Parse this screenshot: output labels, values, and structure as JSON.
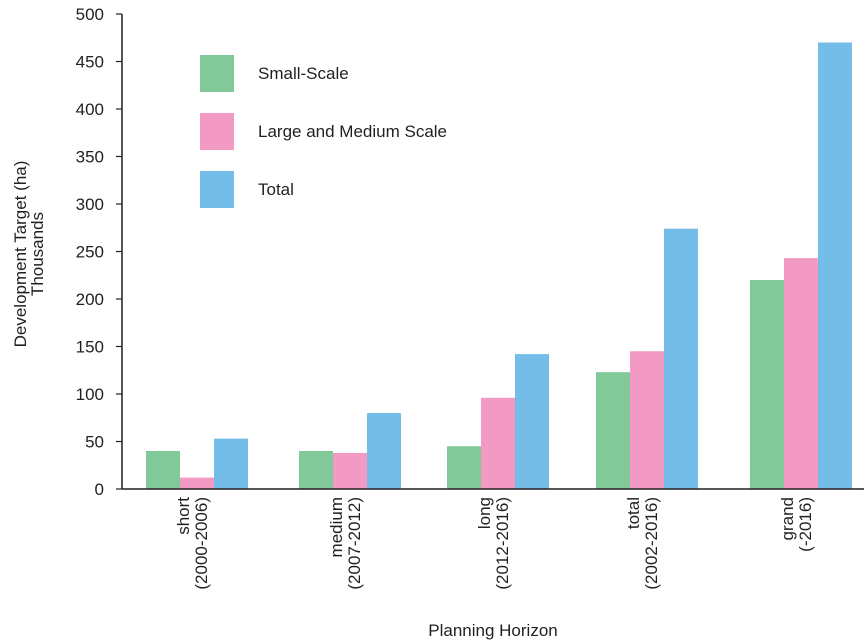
{
  "chart_data": {
    "type": "bar",
    "categories": [
      [
        "short",
        "(2000-2006)"
      ],
      [
        "medium",
        "(2007-2012)"
      ],
      [
        "long",
        "(2012-2016)"
      ],
      [
        "total",
        "(2002-2016)"
      ],
      [
        "grand",
        "(-2016)"
      ]
    ],
    "series": [
      {
        "name": "Small-Scale",
        "values": [
          40,
          40,
          45,
          123,
          220
        ],
        "color": "#82c99a"
      },
      {
        "name": "Large and Medium Scale",
        "values": [
          12,
          38,
          96,
          145,
          243
        ],
        "color": "#f29ac4"
      },
      {
        "name": "Total",
        "values": [
          53,
          80,
          142,
          274,
          470
        ],
        "color": "#74bde8"
      }
    ],
    "title": "",
    "xlabel": "Planning Horizon",
    "ylabel": [
      "Development Target (ha)",
      "Thousands"
    ],
    "ylim": [
      0,
      500
    ],
    "yticks": [
      0,
      50,
      100,
      150,
      200,
      250,
      300,
      350,
      400,
      450,
      500
    ],
    "grid": false,
    "legend_position": "top-left"
  }
}
